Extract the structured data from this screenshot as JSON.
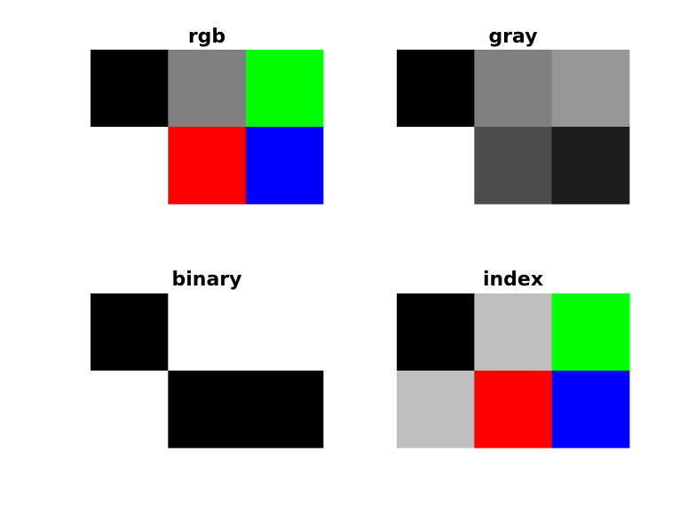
{
  "chart_data": [
    {
      "type": "heatmap",
      "title": "rgb",
      "rows": 2,
      "cols": 3,
      "cells": [
        [
          "#000000",
          "#808080",
          "#00ff00"
        ],
        [
          "#ffffff",
          "#ff0000",
          "#0000ff"
        ]
      ]
    },
    {
      "type": "heatmap",
      "title": "gray",
      "rows": 2,
      "cols": 3,
      "cells": [
        [
          "#000000",
          "#808080",
          "#969696"
        ],
        [
          "#ffffff",
          "#4c4c4c",
          "#1d1d1d"
        ]
      ]
    },
    {
      "type": "heatmap",
      "title": "binary",
      "rows": 2,
      "cols": 3,
      "cells": [
        [
          "#000000",
          "#ffffff",
          "#ffffff"
        ],
        [
          "#ffffff",
          "#000000",
          "#000000"
        ]
      ]
    },
    {
      "type": "heatmap",
      "title": "index",
      "rows": 2,
      "cols": 3,
      "cells": [
        [
          "#000000",
          "#bfbfbf",
          "#00ff00"
        ],
        [
          "#bfbfbf",
          "#ff0000",
          "#0000ff"
        ]
      ]
    }
  ]
}
